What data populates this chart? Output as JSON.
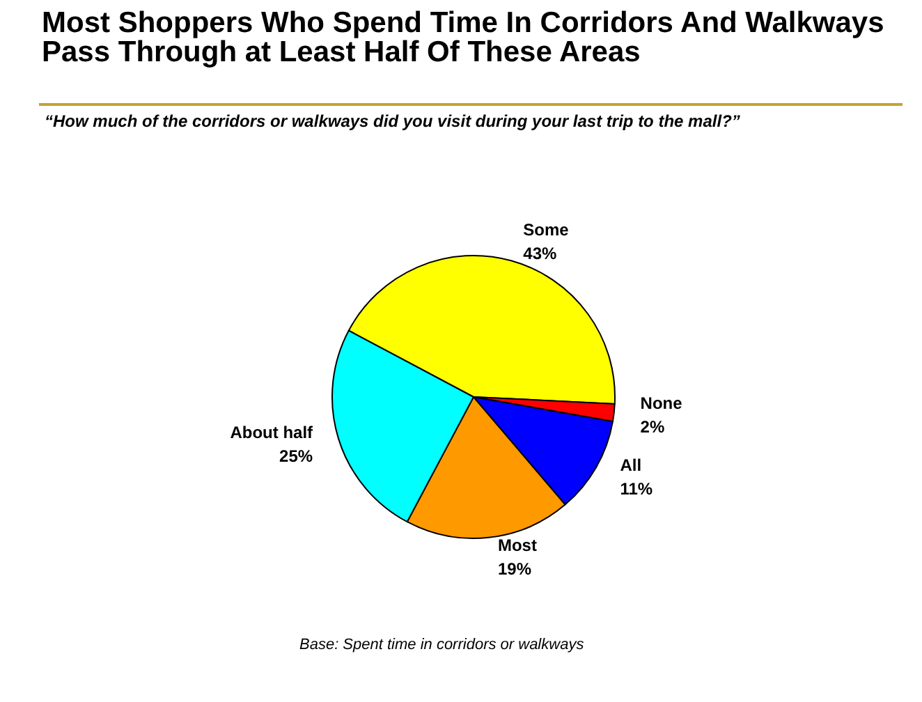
{
  "chart_data": {
    "type": "pie",
    "title": "Most Shoppers Who Spend Time In Corridors And Walkways Pass Through at Least Half Of These Areas",
    "subtitle": "“How much of the corridors or walkways did you visit during your last trip to the mall?”",
    "categories": [
      "Some",
      "None",
      "All",
      "Most",
      "About half"
    ],
    "values": [
      43,
      2,
      11,
      19,
      25
    ],
    "value_labels": [
      "43%",
      "2%",
      "11%",
      "19%",
      "25%"
    ],
    "colors": [
      "#ffff00",
      "#ff0000",
      "#0000ff",
      "#ff9900",
      "#00ffff"
    ],
    "annotations": [
      "Base: Spent time in corridors or walkways"
    ],
    "legend": false
  }
}
